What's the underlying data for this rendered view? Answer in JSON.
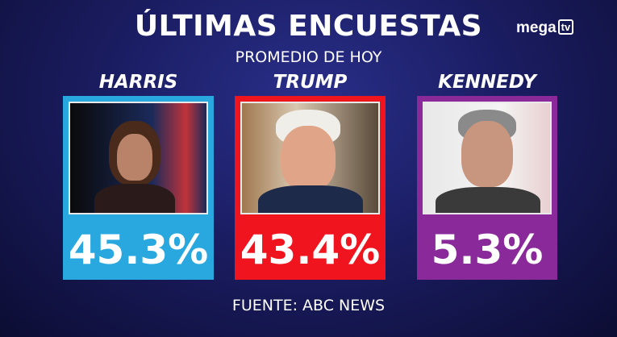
{
  "header": {
    "title": "ÚLTIMAS ENCUESTAS",
    "subtitle": "PROMEDIO DE HOY"
  },
  "logo": {
    "text": "mega",
    "badge": "tv"
  },
  "candidates": [
    {
      "name": "HARRIS",
      "percent": "45.3%",
      "color": "#29a8e0"
    },
    {
      "name": "TRUMP",
      "percent": "43.4%",
      "color": "#f0141e"
    },
    {
      "name": "KENNEDY",
      "percent": "5.3%",
      "color": "#8a2a9a"
    }
  ],
  "footer": {
    "source": "FUENTE: ABC NEWS"
  }
}
